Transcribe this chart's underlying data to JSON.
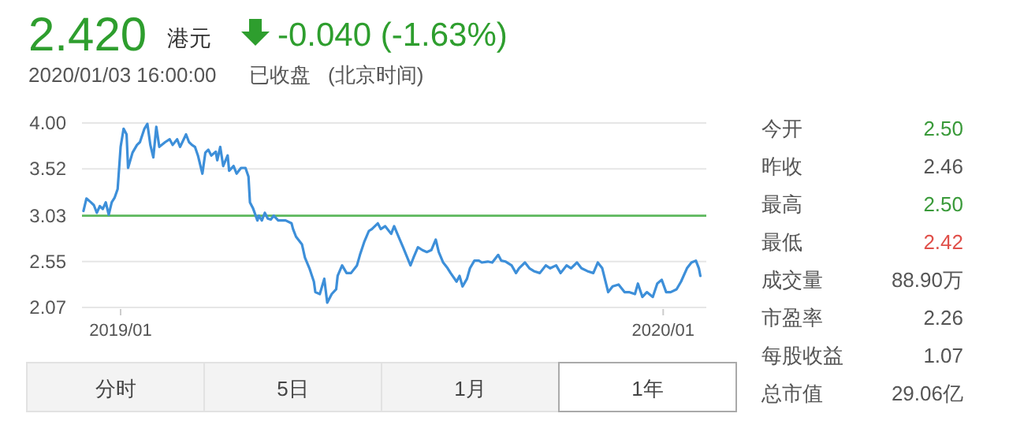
{
  "chart_data": [
    {
      "type": "line",
      "annotations": [
        "2.420",
        "港元",
        "-0.040 (-1.63%)",
        "2020/01/03 16:00:00",
        "已收盘",
        "(北京时间)",
        "分时",
        "5日",
        "1月",
        "1年"
      ],
      "x": [
        "2018-12-07",
        "2018-12-09",
        "2018-12-12",
        "2018-12-14",
        "2018-12-16",
        "2018-12-18",
        "2018-12-20",
        "2018-12-22",
        "2018-12-24",
        "2018-12-26",
        "2018-12-28",
        "2018-12-30",
        "2019-01-01",
        "2019-01-03",
        "2019-01-05",
        "2019-01-06",
        "2019-01-09",
        "2019-01-12",
        "2019-01-14",
        "2019-01-17",
        "2019-01-19",
        "2019-01-21",
        "2019-01-23",
        "2019-01-25",
        "2019-01-27",
        "2019-01-31",
        "2019-02-03",
        "2019-02-05",
        "2019-02-08",
        "2019-02-10",
        "2019-02-14",
        "2019-02-16",
        "2019-02-18",
        "2019-02-20",
        "2019-02-22",
        "2019-02-25",
        "2019-02-27",
        "2019-03-01",
        "2019-03-03",
        "2019-03-06",
        "2019-03-07",
        "2019-03-09",
        "2019-03-11",
        "2019-03-14",
        "2019-03-15",
        "2019-03-18",
        "2019-03-20",
        "2019-03-23",
        "2019-03-26",
        "2019-03-28",
        "2019-03-29",
        "2019-03-31",
        "2019-04-03",
        "2019-04-04",
        "2019-04-06",
        "2019-04-08",
        "2019-04-10",
        "2019-04-12",
        "2019-04-14",
        "2019-04-17",
        "2019-04-19",
        "2019-04-22",
        "2019-04-26",
        "2019-04-27",
        "2019-04-29",
        "2019-05-03",
        "2019-05-05",
        "2019-05-08",
        "2019-05-11",
        "2019-05-12",
        "2019-05-15",
        "2019-05-18",
        "2019-05-20",
        "2019-05-23",
        "2019-05-26",
        "2019-05-27",
        "2019-05-30",
        "2019-06-02",
        "2019-06-05",
        "2019-06-09",
        "2019-06-11",
        "2019-06-14",
        "2019-06-17",
        "2019-06-19",
        "2019-06-23",
        "2019-06-25",
        "2019-06-28",
        "2019-07-02",
        "2019-07-04",
        "2019-07-07",
        "2019-07-10",
        "2019-07-15",
        "2019-07-17",
        "2019-07-20",
        "2019-07-23",
        "2019-07-26",
        "2019-07-29",
        "2019-08-01",
        "2019-08-03",
        "2019-08-06",
        "2019-08-09",
        "2019-08-11",
        "2019-08-15",
        "2019-08-17",
        "2019-08-19",
        "2019-08-22",
        "2019-08-24",
        "2019-08-27",
        "2019-08-30",
        "2019-09-01",
        "2019-09-05",
        "2019-09-08",
        "2019-09-12",
        "2019-09-14",
        "2019-09-17",
        "2019-09-21",
        "2019-09-24",
        "2019-09-26",
        "2019-09-30",
        "2019-10-03",
        "2019-10-06",
        "2019-10-10",
        "2019-10-14",
        "2019-10-17",
        "2019-10-21",
        "2019-10-24",
        "2019-10-28",
        "2019-10-31",
        "2019-11-04",
        "2019-11-07",
        "2019-11-11",
        "2019-11-15",
        "2019-11-18",
        "2019-11-21",
        "2019-11-25",
        "2019-11-28",
        "2019-12-02",
        "2019-12-06",
        "2019-12-09",
        "2019-12-13",
        "2019-12-15",
        "2019-12-18",
        "2019-12-21",
        "2019-12-25",
        "2019-12-28",
        "2019-12-31",
        "2020-01-03",
        "2020-01-06",
        "2020-01-10",
        "2020-01-13",
        "2020-01-17",
        "2020-01-20",
        "2020-01-23",
        "2020-01-25",
        "2020-01-26"
      ],
      "series": [
        {
          "color": "#3d8fd9",
          "values": [
            3.08,
            3.21,
            3.17,
            3.14,
            3.06,
            3.13,
            3.1,
            3.17,
            3.04,
            3.17,
            3.22,
            3.31,
            3.75,
            3.94,
            3.88,
            3.53,
            3.69,
            3.77,
            3.8,
            3.94,
            3.99,
            3.77,
            3.64,
            3.96,
            3.75,
            3.8,
            3.83,
            3.77,
            3.83,
            3.75,
            3.88,
            3.8,
            3.77,
            3.75,
            3.66,
            3.47,
            3.69,
            3.72,
            3.66,
            3.7,
            3.61,
            3.75,
            3.55,
            3.66,
            3.5,
            3.55,
            3.47,
            3.53,
            3.53,
            3.44,
            3.17,
            3.11,
            2.98,
            3.03,
            2.98,
            3.06,
            3.0,
            2.99,
            3.03,
            2.98,
            2.98,
            2.98,
            2.95,
            2.89,
            2.81,
            2.73,
            2.59,
            2.48,
            2.34,
            2.23,
            2.21,
            2.37,
            2.12,
            2.21,
            2.26,
            2.4,
            2.51,
            2.43,
            2.43,
            2.51,
            2.62,
            2.76,
            2.87,
            2.89,
            2.95,
            2.89,
            2.92,
            2.84,
            2.92,
            2.81,
            2.7,
            2.51,
            2.59,
            2.7,
            2.67,
            2.65,
            2.67,
            2.78,
            2.65,
            2.54,
            2.48,
            2.43,
            2.34,
            2.4,
            2.29,
            2.37,
            2.48,
            2.56,
            2.56,
            2.54,
            2.55,
            2.54,
            2.62,
            2.56,
            2.55,
            2.51,
            2.43,
            2.48,
            2.54,
            2.48,
            2.45,
            2.43,
            2.51,
            2.48,
            2.51,
            2.43,
            2.51,
            2.48,
            2.54,
            2.48,
            2.45,
            2.43,
            2.54,
            2.48,
            2.23,
            2.29,
            2.31,
            2.23,
            2.23,
            2.21,
            2.32,
            2.18,
            2.23,
            2.18,
            2.32,
            2.36,
            2.23,
            2.23,
            2.26,
            2.34,
            2.48,
            2.54,
            2.56,
            2.48,
            2.4
          ]
        }
      ],
      "xlim": [
        "2018-12-06",
        "2020-01-30"
      ],
      "xticks": [
        {
          "value": "2019-01-01",
          "label": "2019/01"
        },
        {
          "value": "2020-01-01",
          "label": "2020/01"
        }
      ],
      "ylim": [
        2.07,
        4.0
      ],
      "yticks": [
        2.07,
        2.55,
        3.03,
        3.52,
        {
          "value": 4.0,
          "label": "4.00"
        }
      ],
      "grid": "y",
      "marker": "none",
      "ref_lines": [
        {
          "axis": "y",
          "value": 3.03,
          "color": "#5cb85c"
        }
      ]
    },
    {
      "type": "other",
      "categories": [
        "今开",
        "昨收",
        "最高",
        "最低",
        "成交量",
        "市盈率",
        "每股收益",
        "总市值"
      ],
      "value_labels": [
        "2.50",
        "2.46",
        "2.50",
        "2.42",
        "88.90万",
        "2.26",
        "1.07",
        "29.06亿"
      ],
      "colors": [
        "#3a9a3a",
        "#555555",
        "#3a9a3a",
        "#e0504a",
        "#555555",
        "#555555",
        "#555555",
        "#555555"
      ]
    }
  ]
}
